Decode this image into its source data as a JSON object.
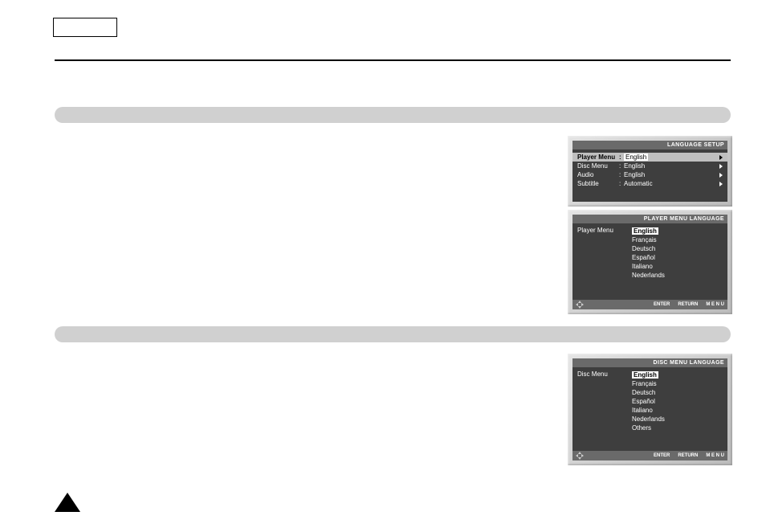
{
  "osd1": {
    "title": "LANGUAGE SETUP",
    "highlighted": {
      "label": "Player Menu",
      "value": "English"
    },
    "rows": [
      {
        "label": "Disc Menu",
        "value": "English"
      },
      {
        "label": "Audio",
        "value": "English"
      },
      {
        "label": "Subtitle",
        "value": "Automatic"
      }
    ]
  },
  "osd2": {
    "title": "PLAYER MENU LANGUAGE",
    "left_label": "Player Menu",
    "selected": "English",
    "options": [
      "Français",
      "Deutsch",
      "Español",
      "Italiano",
      "Nederlands"
    ],
    "footer": [
      "ENTER",
      "RETURN",
      "M E N U"
    ]
  },
  "osd3": {
    "title": "DISC MENU LANGUAGE",
    "left_label": "Disc Menu",
    "selected": "English",
    "options": [
      "Français",
      "Deutsch",
      "Español",
      "Italiano",
      "Nederlands",
      "Others"
    ],
    "footer": [
      "ENTER",
      "RETURN",
      "M E N U"
    ]
  }
}
